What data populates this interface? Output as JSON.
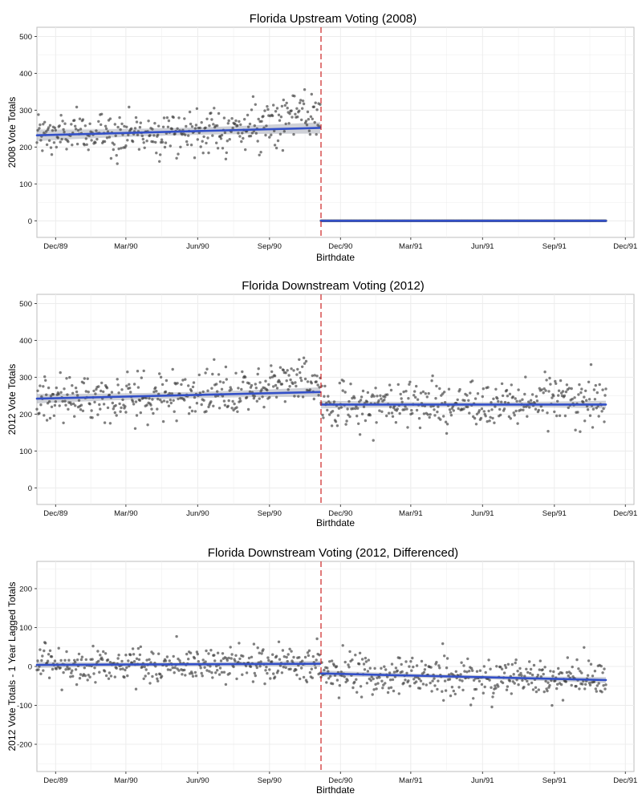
{
  "colors": {
    "points": "#3a3a3a",
    "fit_line": "#3350c8",
    "fit_band": "#a7abb6",
    "cutoff_line": "#cc2222",
    "grid": "#ececec",
    "panel_border": "#bdbdbd"
  },
  "chart_data": [
    {
      "type": "scatter",
      "title": "Florida Upstream Voting (2008)",
      "xlabel": "Birthdate",
      "ylabel": "2008 Vote Totals",
      "x_range": [
        "1989-11-07",
        "1991-12-12"
      ],
      "ylim": [
        -45,
        525
      ],
      "yticks": [
        0,
        100,
        200,
        300,
        400,
        500
      ],
      "xticks": [
        {
          "date": "1989-12-01",
          "label": "Dec/89"
        },
        {
          "date": "1990-03-01",
          "label": "Mar/90"
        },
        {
          "date": "1990-06-01",
          "label": "Jun/90"
        },
        {
          "date": "1990-09-01",
          "label": "Sep/90"
        },
        {
          "date": "1990-12-01",
          "label": "Dec/90"
        },
        {
          "date": "1991-03-01",
          "label": "Mar/91"
        },
        {
          "date": "1991-06-01",
          "label": "Jun/91"
        },
        {
          "date": "1991-09-01",
          "label": "Sep/91"
        },
        {
          "date": "1991-12-01",
          "label": "Dec/91"
        }
      ],
      "cutoff_date": "1990-11-06",
      "data_range": [
        "1989-11-07",
        "1991-11-06"
      ],
      "segments": [
        {
          "from": "1989-11-07",
          "to": "1990-11-05",
          "trend_start": 232,
          "trend_end": 252,
          "peak_at": "1990-10-01",
          "peak_height": 40,
          "noise": 30,
          "band": 12
        },
        {
          "from": "1990-11-06",
          "to": "1991-11-06",
          "trend_start": 0,
          "trend_end": 0,
          "peak_at": "1991-05-01",
          "peak_height": 0,
          "noise": 0,
          "band": 2
        }
      ],
      "grid": true,
      "grid_minor": true
    },
    {
      "type": "scatter",
      "title": "Florida Downstream Voting (2012)",
      "xlabel": "Birthdate",
      "ylabel": "2012 Vote Totals",
      "x_range": [
        "1989-11-07",
        "1991-12-12"
      ],
      "ylim": [
        -45,
        525
      ],
      "yticks": [
        0,
        100,
        200,
        300,
        400,
        500
      ],
      "xticks": [
        {
          "date": "1989-12-01",
          "label": "Dec/89"
        },
        {
          "date": "1990-03-01",
          "label": "Mar/90"
        },
        {
          "date": "1990-06-01",
          "label": "Jun/90"
        },
        {
          "date": "1990-09-01",
          "label": "Sep/90"
        },
        {
          "date": "1990-12-01",
          "label": "Dec/90"
        },
        {
          "date": "1991-03-01",
          "label": "Mar/91"
        },
        {
          "date": "1991-06-01",
          "label": "Jun/91"
        },
        {
          "date": "1991-09-01",
          "label": "Sep/91"
        },
        {
          "date": "1991-12-01",
          "label": "Dec/91"
        }
      ],
      "cutoff_date": "1990-11-06",
      "data_range": [
        "1989-11-07",
        "1991-11-06"
      ],
      "segments": [
        {
          "from": "1989-11-07",
          "to": "1990-11-05",
          "trend_start": 242,
          "trend_end": 260,
          "peak_at": "1990-10-01",
          "peak_height": 40,
          "noise": 30,
          "band": 10
        },
        {
          "from": "1990-11-06",
          "to": "1991-11-06",
          "trend_start": 226,
          "trend_end": 226,
          "peak_at": "1991-09-10",
          "peak_height": 20,
          "noise": 32,
          "band": 8
        }
      ],
      "grid": true,
      "grid_minor": true
    },
    {
      "type": "scatter",
      "title": "Florida Downstream Voting (2012, Differenced)",
      "xlabel": "Birthdate",
      "ylabel": "2012 Vote Totals - 1 Year Lagged Totals",
      "x_range": [
        "1989-11-07",
        "1991-12-12"
      ],
      "ylim": [
        -270,
        270
      ],
      "yticks": [
        -200,
        -100,
        0,
        100,
        200
      ],
      "xticks": [
        {
          "date": "1989-12-01",
          "label": "Dec/89"
        },
        {
          "date": "1990-03-01",
          "label": "Mar/90"
        },
        {
          "date": "1990-06-01",
          "label": "Jun/90"
        },
        {
          "date": "1990-09-01",
          "label": "Sep/90"
        },
        {
          "date": "1990-12-01",
          "label": "Dec/90"
        },
        {
          "date": "1991-03-01",
          "label": "Mar/91"
        },
        {
          "date": "1991-06-01",
          "label": "Jun/91"
        },
        {
          "date": "1991-09-01",
          "label": "Sep/91"
        },
        {
          "date": "1991-12-01",
          "label": "Dec/91"
        }
      ],
      "cutoff_date": "1990-11-06",
      "data_range": [
        "1989-11-07",
        "1991-11-06"
      ],
      "segments": [
        {
          "from": "1989-11-07",
          "to": "1990-11-05",
          "trend_start": 4,
          "trend_end": 7,
          "peak_at": "1990-10-01",
          "peak_height": 0,
          "noise": 24,
          "band": 6
        },
        {
          "from": "1990-11-06",
          "to": "1991-11-06",
          "trend_start": -18,
          "trend_end": -35,
          "peak_at": "1991-05-01",
          "peak_height": 0,
          "noise": 26,
          "band": 6
        }
      ],
      "grid": true,
      "grid_minor": true
    }
  ]
}
